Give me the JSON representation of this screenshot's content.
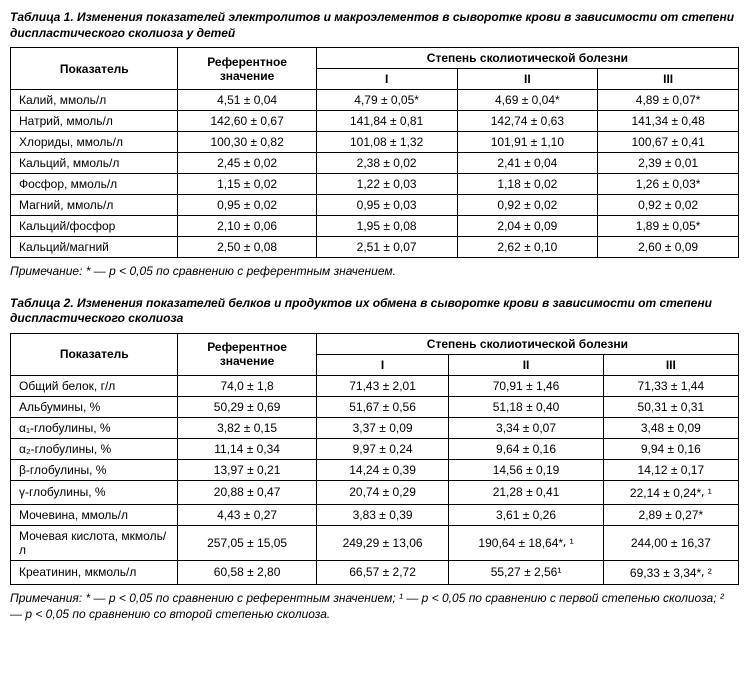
{
  "table1": {
    "title": "Таблица 1. Изменения показателей электролитов и макроэлементов в сыворотке крови в зависимости от степени диспластического сколиоза у детей",
    "col_indicator": "Показатель",
    "col_reference": "Референтное значение",
    "col_degree_header": "Степень сколиотической болезни",
    "col_d1": "I",
    "col_d2": "II",
    "col_d3": "III",
    "rows": [
      {
        "label": "Калий, ммоль/л",
        "ref": "4,51 ± 0,04",
        "d1": "4,79 ± 0,05*",
        "d2": "4,69 ± 0,04*",
        "d3": "4,89 ± 0,07*"
      },
      {
        "label": "Натрий, ммоль/л",
        "ref": "142,60 ± 0,67",
        "d1": "141,84 ± 0,81",
        "d2": "142,74 ± 0,63",
        "d3": "141,34 ± 0,48"
      },
      {
        "label": "Хлориды, ммоль/л",
        "ref": "100,30 ± 0,82",
        "d1": "101,08 ± 1,32",
        "d2": "101,91 ± 1,10",
        "d3": "100,67 ± 0,41"
      },
      {
        "label": "Кальций, ммоль/л",
        "ref": "2,45 ± 0,02",
        "d1": "2,38 ± 0,02",
        "d2": "2,41 ± 0,04",
        "d3": "2,39 ± 0,01"
      },
      {
        "label": "Фосфор, ммоль/л",
        "ref": "1,15 ± 0,02",
        "d1": "1,22 ± 0,03",
        "d2": "1,18 ± 0,02",
        "d3": "1,26 ± 0,03*"
      },
      {
        "label": "Магний, ммоль/л",
        "ref": "0,95 ± 0,02",
        "d1": "0,95 ± 0,03",
        "d2": "0,92 ± 0,02",
        "d3": "0,92 ± 0,02"
      },
      {
        "label": "Кальций/фосфор",
        "ref": "2,10 ± 0,06",
        "d1": "1,95 ± 0,08",
        "d2": "2,04 ± 0,09",
        "d3": "1,89 ± 0,05*"
      },
      {
        "label": "Кальций/магний",
        "ref": "2,50 ± 0,08",
        "d1": "2,51 ± 0,07",
        "d2": "2,62 ± 0,10",
        "d3": "2,60 ± 0,09"
      }
    ],
    "note": "Примечание: * — p < 0,05 по сравнению с референтным значением."
  },
  "table2": {
    "title": "Таблица 2. Изменения показателей белков и продуктов их обмена в сыворотке крови в зависимости от степени диспластического сколиоза",
    "col_indicator": "Показатель",
    "col_reference": "Референтное значение",
    "col_degree_header": "Степень сколиотической болезни",
    "col_d1": "I",
    "col_d2": "II",
    "col_d3": "III",
    "rows": [
      {
        "label": "Общий белок, г/л",
        "ref": "74,0 ± 1,8",
        "d1": "71,43 ± 2,01",
        "d2": "70,91 ± 1,46",
        "d3": "71,33 ± 1,44"
      },
      {
        "label": "Альбумины, %",
        "ref": "50,29 ± 0,69",
        "d1": "51,67 ± 0,56",
        "d2": "51,18 ± 0,40",
        "d3": "50,31 ± 0,31"
      },
      {
        "label": "α₁-глобулины, %",
        "ref": "3,82 ± 0,15",
        "d1": "3,37 ± 0,09",
        "d2": "3,34 ± 0,07",
        "d3": "3,48 ± 0,09"
      },
      {
        "label": "α₂-глобулины, %",
        "ref": "11,14 ± 0,34",
        "d1": "9,97 ± 0,24",
        "d2": "9,64 ± 0,16",
        "d3": "9,94 ± 0,16"
      },
      {
        "label": "β-глобулины, %",
        "ref": "13,97 ± 0,21",
        "d1": "14,24 ± 0,39",
        "d2": "14,56 ± 0,19",
        "d3": "14,12 ± 0,17"
      },
      {
        "label": "γ-глобулины, %",
        "ref": "20,88 ± 0,47",
        "d1": "20,74 ± 0,29",
        "d2": "21,28 ± 0,41",
        "d3": "22,14 ± 0,24*⸴ ¹"
      },
      {
        "label": "Мочевина, ммоль/л",
        "ref": "4,43 ± 0,27",
        "d1": "3,83 ± 0,39",
        "d2": "3,61 ± 0,26",
        "d3": "2,89 ± 0,27*"
      },
      {
        "label": "Мочевая кислота, мкмоль/л",
        "ref": "257,05 ± 15,05",
        "d1": "249,29 ± 13,06",
        "d2": "190,64 ± 18,64*⸴ ¹",
        "d3": "244,00 ± 16,37"
      },
      {
        "label": "Креатинин, мкмоль/л",
        "ref": "60,58 ± 2,80",
        "d1": "66,57 ± 2,72",
        "d2": "55,27 ± 2,56¹",
        "d3": "69,33 ± 3,34*⸴ ²"
      }
    ],
    "note": "Примечания: * — p < 0,05 по сравнению с референтным значением; ¹ — p < 0,05 по сравнению с первой степенью сколиоза; ² — p < 0,05 по сравнению со второй степенью сколиоза."
  },
  "col_widths": {
    "label": "23%",
    "ref": "19%",
    "d": "19%"
  }
}
